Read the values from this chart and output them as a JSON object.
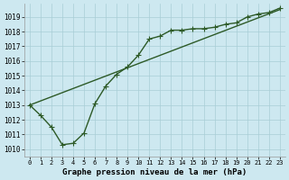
{
  "title": "Graphe pression niveau de la mer (hPa)",
  "bg_color": "#cde8f0",
  "grid_color": "#a8cdd6",
  "line_color": "#2d5a27",
  "line1_x": [
    0,
    1,
    2,
    3,
    4,
    5,
    6,
    7,
    8,
    9,
    10,
    11,
    12,
    13,
    14,
    15,
    16,
    17,
    18,
    19,
    20,
    21,
    22,
    23
  ],
  "line1_y": [
    1013.0,
    1012.3,
    1011.5,
    1010.3,
    1010.4,
    1011.1,
    1013.1,
    1014.3,
    1015.1,
    1015.6,
    1016.4,
    1017.5,
    1017.7,
    1018.1,
    1018.1,
    1018.2,
    1018.2,
    1018.3,
    1018.5,
    1018.6,
    1019.0,
    1019.2,
    1019.3,
    1019.6
  ],
  "line2_x": [
    0,
    23
  ],
  "line2_y": [
    1013.0,
    1019.5
  ],
  "ylim": [
    1009.5,
    1019.9
  ],
  "xlim": [
    -0.5,
    23.5
  ],
  "yticks": [
    1010,
    1011,
    1012,
    1013,
    1014,
    1015,
    1016,
    1017,
    1018,
    1019
  ],
  "xticks": [
    0,
    1,
    2,
    3,
    4,
    5,
    6,
    7,
    8,
    9,
    10,
    11,
    12,
    13,
    14,
    15,
    16,
    17,
    18,
    19,
    20,
    21,
    22,
    23
  ],
  "marker": "+",
  "markersize": 4,
  "linewidth": 1.0,
  "xlabel_fontsize": 6.5,
  "tick_fontsize": 5.0,
  "ytick_fontsize": 5.5
}
